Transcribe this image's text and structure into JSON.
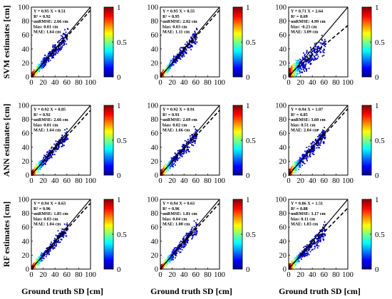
{
  "chart_data": {
    "type": "heatmap",
    "x_tick_labels": [
      "0",
      "20",
      "40",
      "60",
      "80",
      "100"
    ],
    "y_tick_labels": [
      "0",
      "20",
      "40",
      "60",
      "80",
      "100"
    ],
    "xlim": [
      0,
      100
    ],
    "ylim": [
      0,
      100
    ],
    "xlabel": "Ground truth SD [cm]",
    "grid": false,
    "reference_lines": [
      "1:1 line (solid)",
      "regression fit (dashed)"
    ],
    "colorbar": {
      "range": [
        0,
        1
      ],
      "ticks": [
        "0",
        "0.5",
        "1"
      ],
      "colormap": "jet"
    },
    "rows": [
      {
        "ylabel": "SVM estimates [cm]",
        "panels": [
          {
            "equation": "Y = 0.95 X + 0.51",
            "r2": "R² = 0.92",
            "ubrmse": "unRMSE: 2.66 cm",
            "bias": "bias: 0.01 cm",
            "mae": "MAE: 1.64 cm",
            "slope": 0.95,
            "intercept": 0.51
          },
          {
            "equation": "Y = 0.95 X + 0.55",
            "r2": "R² = 0.95",
            "ubrmse": "unRMSE: 2.02 cm",
            "bias": "bias: 0.03 cm",
            "mae": "MAE: 1.11 cm",
            "slope": 0.95,
            "intercept": 0.55
          },
          {
            "equation": "Y = 0.71 X + 2.64",
            "r2": "R² = 0.69",
            "ubrmse": "unRMSE: 4.99 cm",
            "bias": "bias: -0.23 cm",
            "mae": "MAE: 3.09 cm",
            "slope": 0.71,
            "intercept": 2.64
          }
        ]
      },
      {
        "ylabel": "ANN estimates [cm]",
        "panels": [
          {
            "equation": "Y = 0.92 X + 0.85",
            "r2": "R² = 0.92",
            "ubrmse": "unRMSE: 2.66 cm",
            "bias": "bias: 0.01 cm",
            "mae": "MAE: 1.64 cm",
            "slope": 0.92,
            "intercept": 0.85
          },
          {
            "equation": "Y = 0.92 X + 0.91",
            "r2": "R² = 0.91",
            "ubrmse": "unRMSE: 2.69 cm",
            "bias": "bias: 0.02 cm",
            "mae": "MAE: 1.66 cm",
            "slope": 0.92,
            "intercept": 0.91
          },
          {
            "equation": "Y = 0.94 X + 1.07",
            "r2": "R² = 0.85",
            "ubrmse": "unRMSE: 3.60 cm",
            "bias": "bias: 0.51 cm",
            "mae": "MAE: 2.04 cm",
            "slope": 0.94,
            "intercept": 1.07
          }
        ]
      },
      {
        "ylabel": "RF estimates [cm]",
        "panels": [
          {
            "equation": "Y = 0.94 X + 0.63",
            "r2": "R² = 0.96",
            "ubrmse": "unRMSE: 1.85 cm",
            "bias": "bias: 0.03 cm",
            "mae": "MAE: 1.04 cm",
            "slope": 0.94,
            "intercept": 0.63
          },
          {
            "equation": "Y = 0.94 X + 0.63",
            "r2": "R² = 0.96",
            "ubrmse": "unRMSE: 1.81 cm",
            "bias": "bias: 0.04 cm",
            "mae": "MAE: 1.00 cm",
            "slope": 0.94,
            "intercept": 0.63
          },
          {
            "equation": "Y = 0.86 X + 1.51",
            "r2": "R² = 0.88",
            "ubrmse": "unRMSE: 3.17 cm",
            "bias": "bias: 0.11 cm",
            "mae": "MAE: 1.83 cm",
            "slope": 0.86,
            "intercept": 1.51
          }
        ]
      }
    ]
  }
}
